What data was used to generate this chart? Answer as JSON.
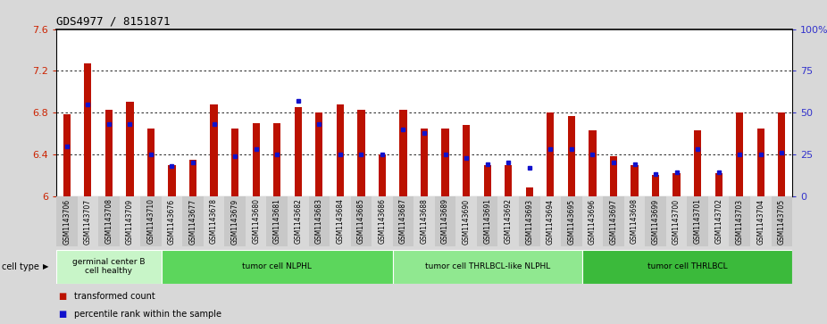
{
  "title": "GDS4977 / 8151871",
  "samples": [
    "GSM1143706",
    "GSM1143707",
    "GSM1143708",
    "GSM1143709",
    "GSM1143710",
    "GSM1143676",
    "GSM1143677",
    "GSM1143678",
    "GSM1143679",
    "GSM1143680",
    "GSM1143681",
    "GSM1143682",
    "GSM1143683",
    "GSM1143684",
    "GSM1143685",
    "GSM1143686",
    "GSM1143687",
    "GSM1143688",
    "GSM1143689",
    "GSM1143690",
    "GSM1143691",
    "GSM1143692",
    "GSM1143693",
    "GSM1143694",
    "GSM1143695",
    "GSM1143696",
    "GSM1143697",
    "GSM1143698",
    "GSM1143699",
    "GSM1143700",
    "GSM1143701",
    "GSM1143702",
    "GSM1143703",
    "GSM1143704",
    "GSM1143705"
  ],
  "bar_values": [
    6.78,
    7.27,
    6.83,
    6.9,
    6.65,
    6.3,
    6.35,
    6.88,
    6.65,
    6.7,
    6.7,
    6.85,
    6.8,
    6.88,
    6.83,
    6.4,
    6.83,
    6.65,
    6.65,
    6.68,
    6.3,
    6.3,
    6.08,
    6.8,
    6.77,
    6.63,
    6.38,
    6.3,
    6.2,
    6.22,
    6.63,
    6.22,
    6.8,
    6.65,
    6.8
  ],
  "percentile_values_pct": [
    30,
    55,
    43,
    43,
    25,
    18,
    20,
    43,
    24,
    28,
    25,
    57,
    43,
    25,
    25,
    25,
    40,
    38,
    25,
    23,
    19,
    20,
    17,
    28,
    28,
    25,
    20,
    19,
    13,
    14,
    28,
    14,
    25,
    25,
    26
  ],
  "ylim_left": [
    6.0,
    7.6
  ],
  "yticks_left": [
    6.0,
    6.4,
    6.8,
    7.2,
    7.6
  ],
  "ytick_labels_left": [
    "6",
    "6.4",
    "6.8",
    "7.2",
    "7.6"
  ],
  "ylim_right": [
    0,
    100
  ],
  "yticks_right": [
    0,
    25,
    50,
    75,
    100
  ],
  "ytick_labels_right": [
    "0",
    "25",
    "50",
    "75",
    "100%"
  ],
  "cell_groups": [
    {
      "label": "germinal center B\ncell healthy",
      "start": 0,
      "end": 5,
      "color": "#c8f5c8"
    },
    {
      "label": "tumor cell NLPHL",
      "start": 5,
      "end": 16,
      "color": "#5cd65c"
    },
    {
      "label": "tumor cell THRLBCL-like NLPHL",
      "start": 16,
      "end": 25,
      "color": "#90e890"
    },
    {
      "label": "tumor cell THRLBCL",
      "start": 25,
      "end": 35,
      "color": "#3bba3b"
    }
  ],
  "bar_color": "#bb1100",
  "marker_color": "#1111cc",
  "bg_color": "#d8d8d8",
  "plot_bg": "#ffffff",
  "left_label_color": "#cc2200",
  "right_label_color": "#3333cc",
  "cell_type_label": "cell type",
  "legend_items": [
    {
      "label": "transformed count",
      "color": "#bb1100"
    },
    {
      "label": "percentile rank within the sample",
      "color": "#1111cc"
    }
  ],
  "bar_width": 0.35
}
